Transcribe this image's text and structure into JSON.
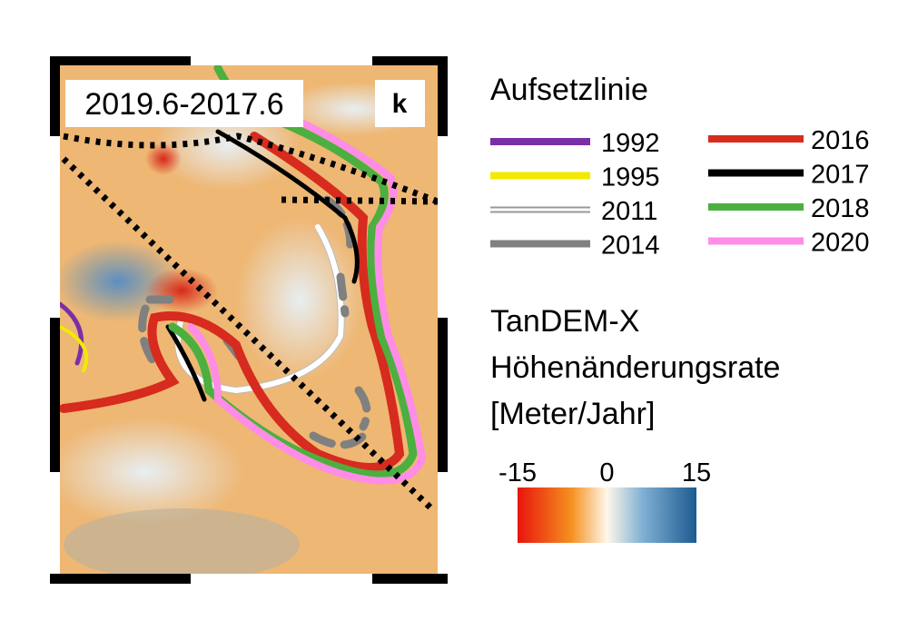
{
  "map": {
    "period_label": "2019.6-2017.6",
    "panel_label": "k"
  },
  "legend": {
    "title": "Aufsetzlinie",
    "items": [
      {
        "name": "1992",
        "color": "#7b2fa6"
      },
      {
        "name": "1995",
        "color": "#f2ea00"
      },
      {
        "name": "2011",
        "color": "#ffffff"
      },
      {
        "name": "2014",
        "color": "#808080"
      },
      {
        "name": "2016",
        "color": "#d62b1e"
      },
      {
        "name": "2017",
        "color": "#000000"
      },
      {
        "name": "2018",
        "color": "#4caf3f"
      },
      {
        "name": "2020",
        "color": "#ff8ce6"
      }
    ]
  },
  "colorbar": {
    "title_lines": [
      "TanDEM-X",
      "Höhenänderungsrate",
      "[Meter/Jahr]"
    ],
    "lim": [
      -15,
      15
    ],
    "ticks": [
      -15,
      0,
      15
    ]
  }
}
